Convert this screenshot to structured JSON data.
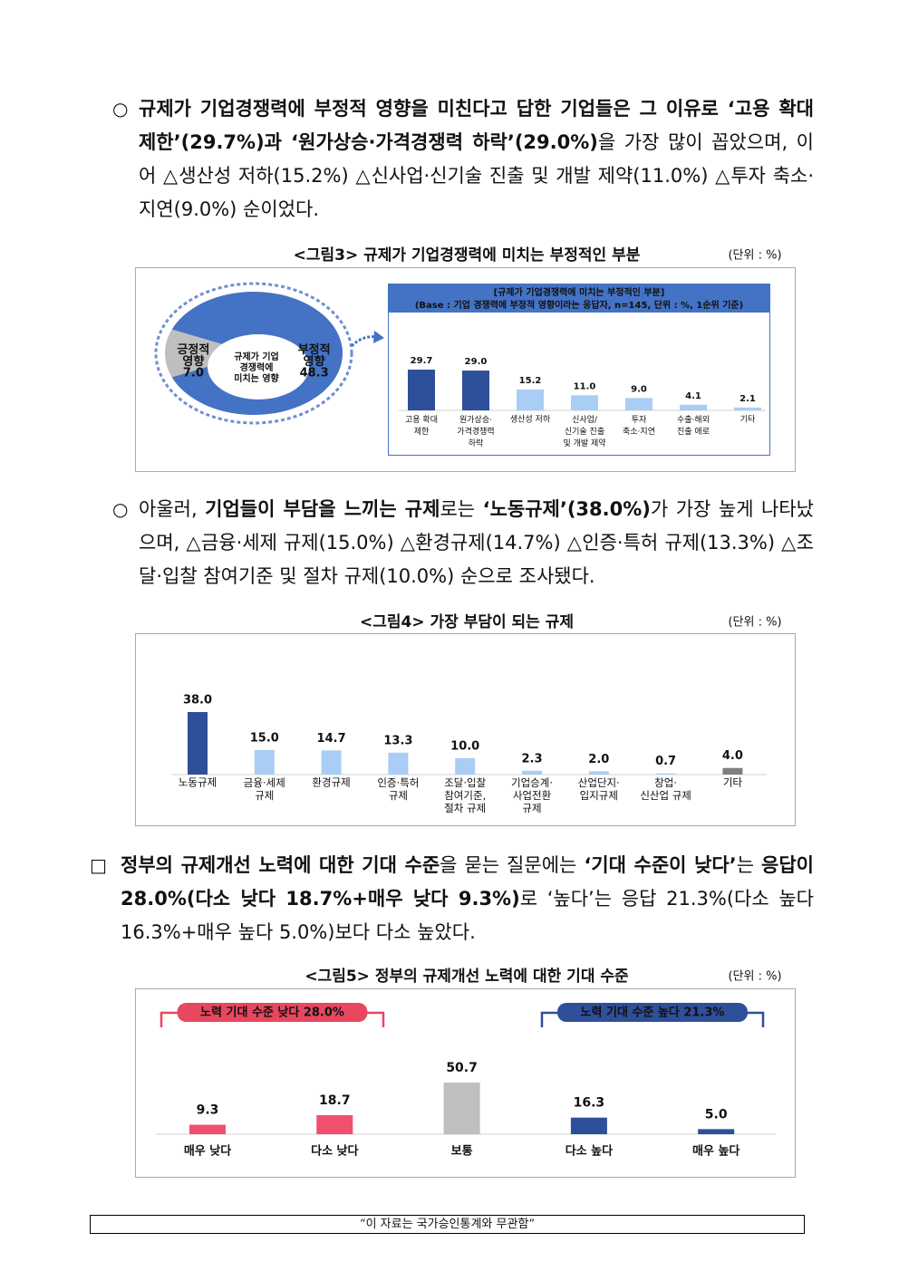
{
  "paragraphs": [
    {
      "marker": "○",
      "runs": [
        {
          "text": "규제가 기업경쟁력에 부정적 영향을 미친다고 답한 기업들은 그 이유로 ‘고용 확대 제한’(29.7%)과 ‘원가상승·가격경쟁력 하락’(29.0%)",
          "bold": true
        },
        {
          "text": "을 가장 많이 꼽았으며, 이어 △생산성 저하(15.2%) △신사업·신기술 진출 및 개발 제약(11.0%) △투자 축소·지연(9.0%) 순이었다.",
          "bold": false
        }
      ]
    },
    {
      "marker": "○",
      "runs": [
        {
          "text": "아울러, ",
          "bold": false
        },
        {
          "text": "기업들이 부담을 느끼는 규제",
          "bold": true
        },
        {
          "text": "로는 ",
          "bold": false
        },
        {
          "text": "‘노동규제’(38.0%)",
          "bold": true
        },
        {
          "text": "가 가장 높게 나타났으며, △금융·세제 규제(15.0%) △환경규제(14.7%) △인증·특허 규제(13.3%) △조달·입찰 참여기준 및 절차 규제(10.0%) 순으로 조사됐다.",
          "bold": false
        }
      ]
    },
    {
      "marker": "□",
      "runs": [
        {
          "text": "정부의 규제개선 노력에 대한 기대 수준",
          "bold": true
        },
        {
          "text": "을 묻는 질문에는 ",
          "bold": false
        },
        {
          "text": "‘기대 수준이 낮다’",
          "bold": true
        },
        {
          "text": "는 ",
          "bold": false
        },
        {
          "text": "응답이 28.0%(다소 낮다 18.7%+매우 낮다 9.3%)",
          "bold": true
        },
        {
          "text": "로 ‘높다’는 응답 21.3%(다소 높다 16.3%+매우 높다 5.0%)보다 다소 높았다.",
          "bold": false
        }
      ]
    }
  ],
  "chart_data": [
    {
      "type": "pie",
      "title": "<그림3> 규제가 기업경쟁력에 미치는 부정적인 부분",
      "unit": "(단위 : %)",
      "center_label": "규제가 기업\n경쟁력에\n미치는 영향",
      "categories": [
        "긍정적\n영향",
        "부정적\n영향"
      ],
      "values": [
        7.0,
        48.3
      ],
      "value_labels": [
        "7.0",
        "48.3"
      ],
      "colors": [
        "#bfbfbf",
        "#4472c4"
      ]
    },
    {
      "type": "bar",
      "title": "[규제가 기업경쟁력에 미치는 부정적인 부분]",
      "subtitle": "(Base : 기업 경쟁력에 부정적 영향이라는 응답자, n=145, 단위 : %, 1순위 기준)",
      "categories": [
        "고용 확대\n제한",
        "원가상승·\n가격경쟁력\n하락",
        "생산성 저하",
        "신사업/\n신기술 진출\n및 개발 제약",
        "투자\n축소·지연",
        "수출·해외\n진출 애로",
        "기타"
      ],
      "values": [
        29.7,
        29.0,
        15.2,
        11.0,
        9.0,
        4.1,
        2.1
      ],
      "value_labels": [
        "29.7",
        "29.0",
        "15.2",
        "11.0",
        "9.0",
        "4.1",
        "2.1"
      ],
      "colors": [
        "#2e4f99",
        "#2e4f99",
        "#a9cdf5",
        "#a9cdf5",
        "#a9cdf5",
        "#a9cdf5",
        "#a9cdf5"
      ]
    },
    {
      "type": "bar",
      "title": "<그림4> 가장 부담이 되는 규제",
      "unit": "(단위 : %)",
      "categories": [
        "노동규제",
        "금융·세제\n규제",
        "환경규제",
        "인증·특허\n규제",
        "조달·입찰\n참여기준,\n절차 규제",
        "기업승계·\n사업전환\n규제",
        "산업단지·\n입지규제",
        "창업·\n신산업 규제",
        "기타"
      ],
      "values": [
        38.0,
        15.0,
        14.7,
        13.3,
        10.0,
        2.3,
        2.0,
        0.7,
        4.0
      ],
      "value_labels": [
        "38.0",
        "15.0",
        "14.7",
        "13.3",
        "10.0",
        "2.3",
        "2.0",
        "0.7",
        "4.0"
      ],
      "colors": [
        "#2e4f99",
        "#a9cdf5",
        "#a9cdf5",
        "#a9cdf5",
        "#a9cdf5",
        "#a9cdf5",
        "#a9cdf5",
        "#a9cdf5",
        "#7f7f7f"
      ]
    },
    {
      "type": "bar",
      "title": "<그림5> 정부의 규제개선 노력에 대한 기대 수준",
      "unit": "(단위 : %)",
      "annotations": [
        {
          "text": "노력 기대 수준 낮다 28.0%",
          "color": "#e8475f"
        },
        {
          "text": "노력 기대 수준 높다 21.3%",
          "color": "#2e4f99"
        }
      ],
      "categories": [
        "매우 낮다",
        "다소 낮다",
        "보통",
        "다소 높다",
        "매우 높다"
      ],
      "values": [
        9.3,
        18.7,
        50.7,
        16.3,
        5.0
      ],
      "value_labels": [
        "9.3",
        "18.7",
        "50.7",
        "16.3",
        "5.0"
      ],
      "colors": [
        "#f0506e",
        "#f0506e",
        "#bfbfbf",
        "#2e4f99",
        "#2e4f99"
      ]
    }
  ],
  "footer": "“이 자료는 국가승인통계와 무관함”"
}
